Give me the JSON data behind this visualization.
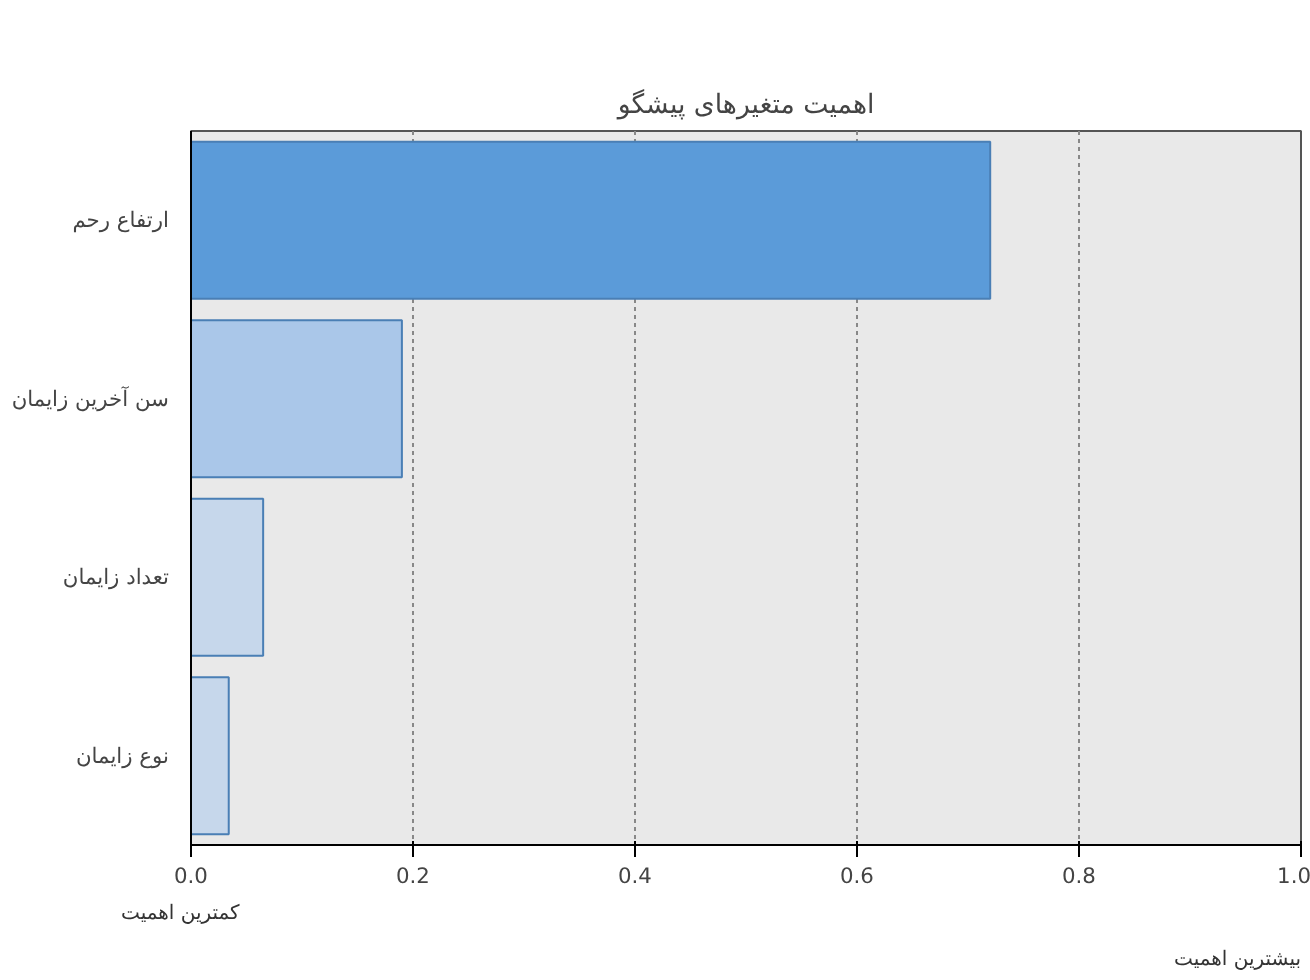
{
  "chart_data": {
    "type": "bar",
    "orientation": "horizontal",
    "title": "اهمیت متغیرهای پیشگو",
    "categories": [
      "ارتفاع رحم",
      "سن آخرین زایمان",
      "تعداد زایمان",
      "نوع زایمان"
    ],
    "values": [
      0.72,
      0.19,
      0.065,
      0.034
    ],
    "colors": [
      "#5b9bd9",
      "#aac7e9",
      "#c6d7eb",
      "#c6d7eb"
    ],
    "xlim": [
      0,
      1
    ],
    "xticks": [
      {
        "value": 0,
        "label": "0.0"
      },
      0.2,
      0.4,
      0.6,
      0.8,
      {
        "value": 1,
        "label": "1.0"
      }
    ],
    "grid": "x",
    "annotations": [
      "کمترین اهمیت",
      "بیشترین اهمیت"
    ]
  }
}
